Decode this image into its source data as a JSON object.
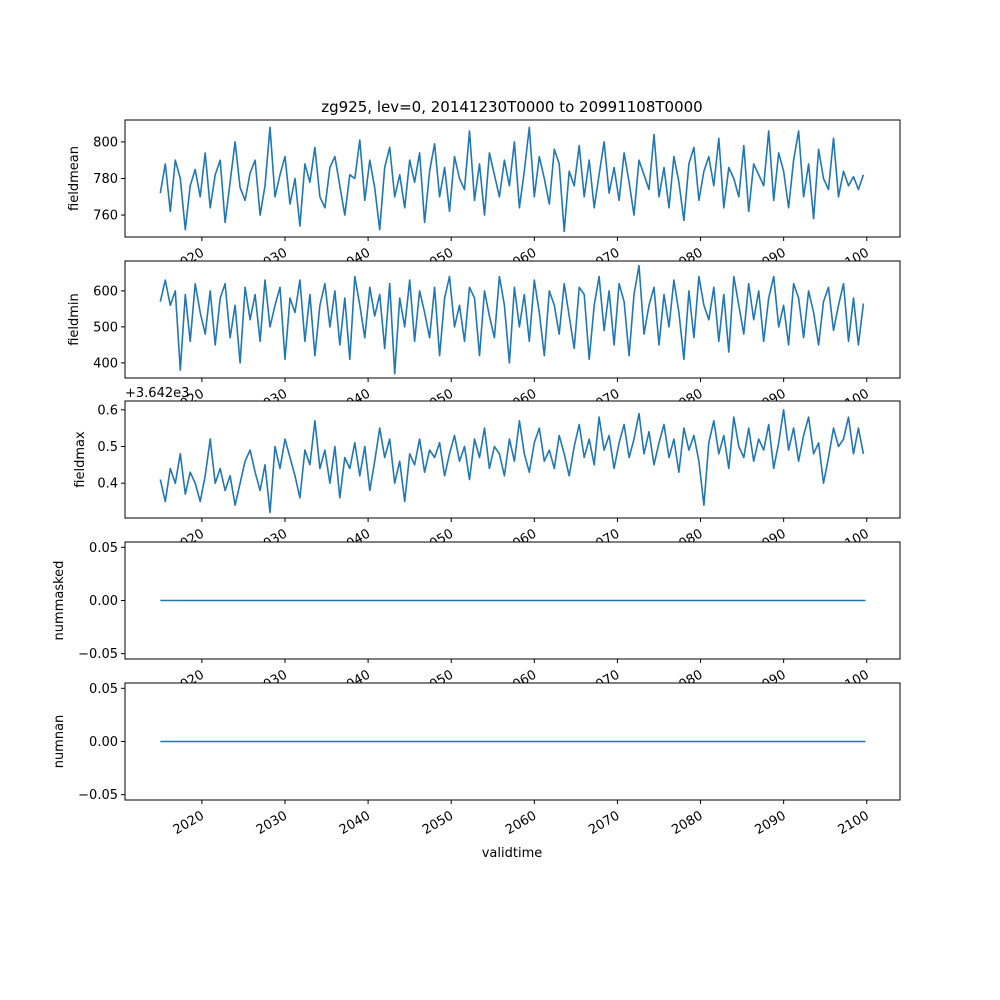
{
  "chart_data": {
    "type": "line",
    "title": "zg925, lev=0, 20141230T0000 to 20991108T0000",
    "xlabel": "validtime",
    "x_start": 2015.0,
    "x_step": 0.6,
    "xlim": [
      2010.75,
      2104.0
    ],
    "xticks": [
      2020,
      2030,
      2040,
      2050,
      2060,
      2070,
      2080,
      2090,
      2100
    ],
    "line_color": "#1f77b4",
    "panels": [
      {
        "ylabel": "fieldmean",
        "ylim": [
          748,
          812
        ],
        "yticks": [
          760,
          780,
          800
        ],
        "ytick_labels": [
          "760",
          "780",
          "800"
        ],
        "offset_text": "",
        "values": [
          772,
          788,
          762,
          790,
          780,
          752,
          776,
          785,
          770,
          794,
          764,
          782,
          790,
          756,
          778,
          800,
          775,
          768,
          783,
          790,
          760,
          776,
          808,
          770,
          782,
          792,
          766,
          780,
          754,
          788,
          778,
          797,
          770,
          764,
          786,
          792,
          776,
          760,
          782,
          780,
          801,
          768,
          790,
          775,
          752,
          786,
          797,
          770,
          782,
          764,
          790,
          778,
          794,
          756,
          784,
          799,
          770,
          786,
          762,
          792,
          780,
          774,
          806,
          768,
          788,
          760,
          794,
          782,
          770,
          790,
          776,
          800,
          764,
          784,
          808,
          770,
          792,
          780,
          766,
          796,
          788,
          751,
          784,
          776,
          798,
          770,
          790,
          764,
          782,
          800,
          772,
          786,
          768,
          794,
          778,
          760,
          790,
          782,
          774,
          804,
          770,
          786,
          764,
          792,
          778,
          757,
          788,
          797,
          768,
          784,
          792,
          776,
          802,
          764,
          786,
          780,
          770,
          798,
          762,
          788,
          782,
          776,
          806,
          768,
          794,
          784,
          764,
          790,
          806,
          770,
          788,
          758,
          796,
          780,
          774,
          802,
          770,
          784,
          776,
          781,
          774,
          782
        ]
      },
      {
        "ylabel": "fieldmin",
        "ylim": [
          358,
          683
        ],
        "yticks": [
          400,
          500,
          600
        ],
        "ytick_labels": [
          "400",
          "500",
          "600"
        ],
        "offset_text": "",
        "values": [
          570,
          630,
          560,
          600,
          380,
          590,
          460,
          620,
          540,
          480,
          600,
          450,
          580,
          620,
          470,
          560,
          400,
          610,
          520,
          590,
          460,
          630,
          500,
          560,
          610,
          410,
          580,
          540,
          630,
          460,
          590,
          420,
          560,
          620,
          500,
          600,
          450,
          580,
          410,
          640,
          560,
          470,
          610,
          530,
          590,
          440,
          620,
          370,
          580,
          500,
          630,
          460,
          600,
          540,
          470,
          610,
          420,
          580,
          640,
          500,
          560,
          460,
          610,
          580,
          420,
          600,
          530,
          470,
          640,
          560,
          400,
          610,
          500,
          590,
          460,
          630,
          540,
          420,
          600,
          560,
          480,
          620,
          530,
          440,
          610,
          590,
          410,
          560,
          640,
          490,
          600,
          450,
          620,
          570,
          420,
          590,
          670,
          480,
          560,
          610,
          450,
          590,
          500,
          630,
          540,
          410,
          600,
          470,
          640,
          560,
          520,
          610,
          460,
          590,
          430,
          640,
          560,
          480,
          620,
          520,
          600,
          460,
          580,
          640,
          500,
          560,
          450,
          620,
          580,
          470,
          600,
          540,
          450,
          570,
          610,
          490,
          560,
          620,
          460,
          580,
          450,
          565
        ]
      },
      {
        "ylabel": "fieldmax",
        "ylim": [
          0.305,
          0.624
        ],
        "yticks": [
          0.4,
          0.5,
          0.6
        ],
        "ytick_labels": [
          "0.4",
          "0.5",
          "0.6"
        ],
        "offset_text": "+3.642e3",
        "values": [
          0.41,
          0.35,
          0.44,
          0.4,
          0.48,
          0.37,
          0.43,
          0.4,
          0.35,
          0.42,
          0.52,
          0.4,
          0.44,
          0.38,
          0.42,
          0.34,
          0.4,
          0.46,
          0.49,
          0.43,
          0.38,
          0.45,
          0.32,
          0.5,
          0.44,
          0.52,
          0.47,
          0.42,
          0.36,
          0.49,
          0.45,
          0.57,
          0.44,
          0.49,
          0.4,
          0.5,
          0.36,
          0.47,
          0.44,
          0.51,
          0.42,
          0.5,
          0.38,
          0.46,
          0.55,
          0.47,
          0.52,
          0.4,
          0.46,
          0.35,
          0.48,
          0.45,
          0.52,
          0.43,
          0.49,
          0.47,
          0.51,
          0.42,
          0.48,
          0.53,
          0.46,
          0.5,
          0.41,
          0.52,
          0.47,
          0.55,
          0.44,
          0.5,
          0.48,
          0.42,
          0.52,
          0.46,
          0.57,
          0.48,
          0.43,
          0.51,
          0.55,
          0.46,
          0.49,
          0.44,
          0.53,
          0.48,
          0.42,
          0.5,
          0.56,
          0.47,
          0.52,
          0.45,
          0.58,
          0.49,
          0.53,
          0.44,
          0.51,
          0.56,
          0.47,
          0.52,
          0.59,
          0.48,
          0.54,
          0.45,
          0.51,
          0.56,
          0.47,
          0.52,
          0.43,
          0.55,
          0.49,
          0.53,
          0.46,
          0.34,
          0.51,
          0.57,
          0.48,
          0.53,
          0.44,
          0.58,
          0.5,
          0.47,
          0.55,
          0.46,
          0.52,
          0.49,
          0.56,
          0.44,
          0.51,
          0.6,
          0.49,
          0.55,
          0.46,
          0.53,
          0.58,
          0.48,
          0.51,
          0.4,
          0.47,
          0.55,
          0.5,
          0.52,
          0.58,
          0.48,
          0.55,
          0.48
        ]
      },
      {
        "ylabel": "nummasked",
        "ylim": [
          -0.055,
          0.055
        ],
        "yticks": [
          -0.05,
          0,
          0.05
        ],
        "ytick_labels": [
          "−0.05",
          "0.00",
          "0.05"
        ],
        "offset_text": "",
        "constant": 0
      },
      {
        "ylabel": "numnan",
        "ylim": [
          -0.055,
          0.055
        ],
        "yticks": [
          -0.05,
          0,
          0.05
        ],
        "ytick_labels": [
          "−0.05",
          "0.00",
          "0.05"
        ],
        "offset_text": "",
        "constant": 0
      }
    ]
  }
}
